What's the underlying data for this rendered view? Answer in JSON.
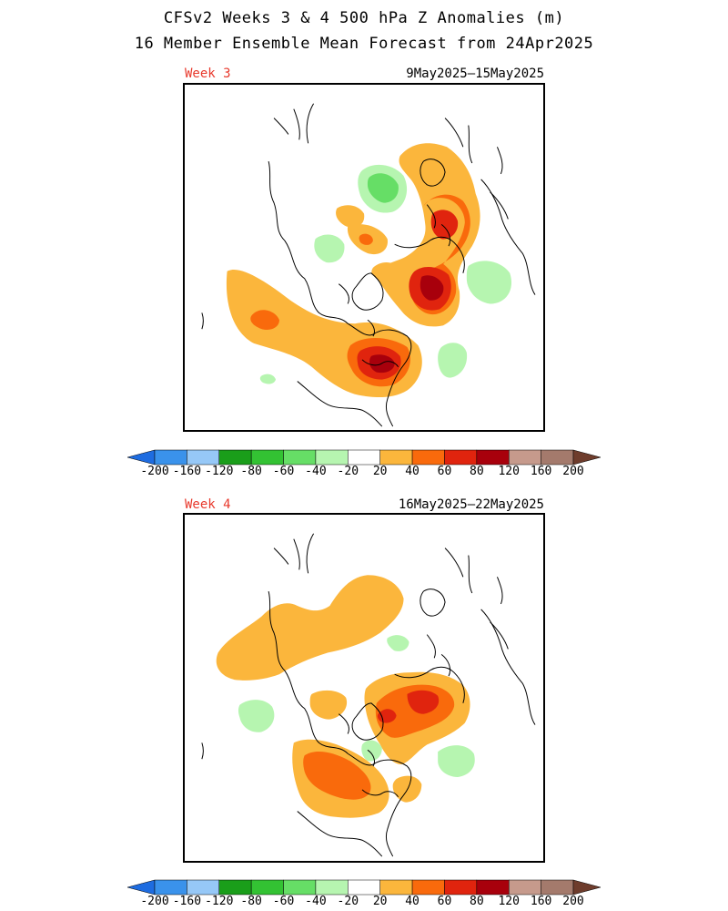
{
  "header": {
    "title_line1": "CFSv2 Weeks 3 & 4 500 hPa Z Anomalies (m)",
    "title_line2": "16 Member Ensemble Mean Forecast from 24Apr2025"
  },
  "panels": [
    {
      "week_label": "Week 3",
      "date_range": "9May2025—15May2025"
    },
    {
      "week_label": "Week 4",
      "date_range": "16May2025—22May2025"
    }
  ],
  "colorbar": {
    "levels": [
      "-200",
      "-160",
      "-120",
      "-80",
      "-60",
      "-40",
      "-20",
      "20",
      "40",
      "60",
      "80",
      "120",
      "160",
      "200"
    ],
    "colors": [
      "#1e6ce0",
      "#3a92eb",
      "#96c8f7",
      "#1a9e1a",
      "#33c233",
      "#66de66",
      "#b6f5b0",
      "#ffffff",
      "#fbb63c",
      "#f96a0c",
      "#e0240e",
      "#a8000c",
      "#c69a8c",
      "#a47a6c",
      "#6e3c2c"
    ]
  },
  "legend_colors": {
    "orange_20": "#fbb63c",
    "orange_40": "#f96a0c",
    "red_60": "#e0240e",
    "darkred_80": "#a8000c",
    "green_20": "#b6f5b0",
    "green_40": "#66de66"
  }
}
